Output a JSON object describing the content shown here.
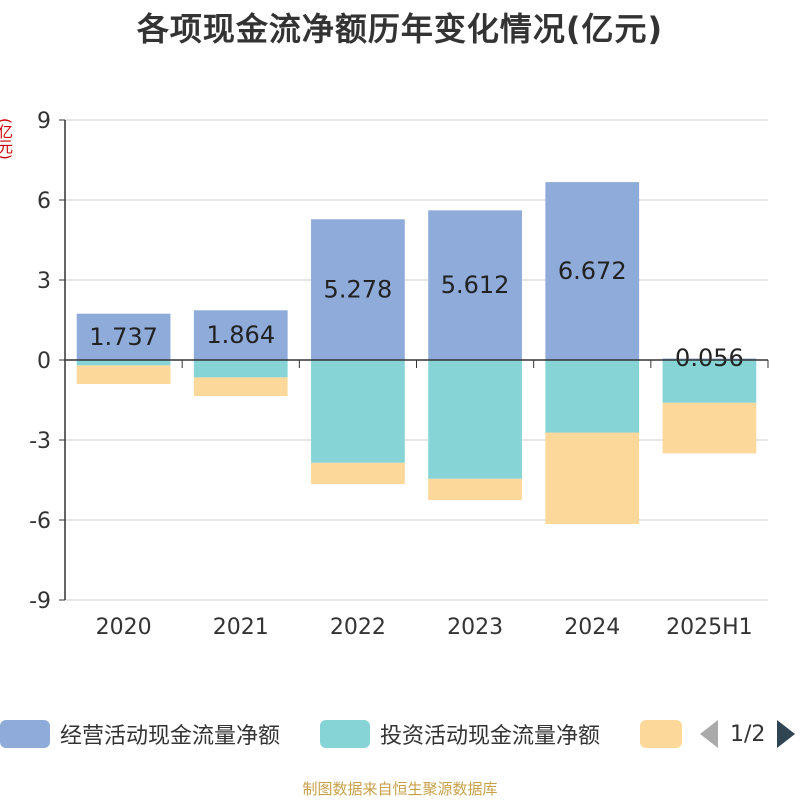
{
  "title": "各项现金流净额历年变化情况(亿元)",
  "unit_label": "(亿元)",
  "footer": "制图数据来自恒生聚源数据库",
  "legend": {
    "items": [
      {
        "label": "经营活动现金流量净额",
        "color": "#8fabd9"
      },
      {
        "label": "投资活动现金流量净额",
        "color": "#86d4d6"
      },
      {
        "label": "",
        "color": "#fdd89b"
      }
    ],
    "page": "1/2"
  },
  "chart_data": {
    "type": "bar",
    "stacked": true,
    "categories": [
      "2020",
      "2021",
      "2022",
      "2023",
      "2024",
      "2025H1"
    ],
    "ylim": [
      -9,
      9
    ],
    "yticks": [
      9,
      6,
      3,
      0,
      -3,
      -6,
      -9
    ],
    "grid": true,
    "legend_position": "bottom",
    "series": [
      {
        "name": "经营活动现金流量净额",
        "color": "#8fabd9",
        "values": [
          1.737,
          1.864,
          5.278,
          5.612,
          6.672,
          0.056
        ],
        "show_labels": true
      },
      {
        "name": "投资活动现金流量净额",
        "color": "#86d4d6",
        "values": [
          -0.2,
          -0.65,
          -3.85,
          -4.45,
          -2.72,
          -1.6
        ],
        "show_labels": false
      },
      {
        "color": "#fdd89b",
        "values": [
          -0.9,
          -1.35,
          -4.65,
          -5.25,
          -6.15,
          -3.5
        ],
        "show_labels": false,
        "cumulative_end": true
      }
    ],
    "data_labels": [
      "1.737",
      "1.864",
      "5.278",
      "5.612",
      "6.672",
      "0.056"
    ]
  }
}
